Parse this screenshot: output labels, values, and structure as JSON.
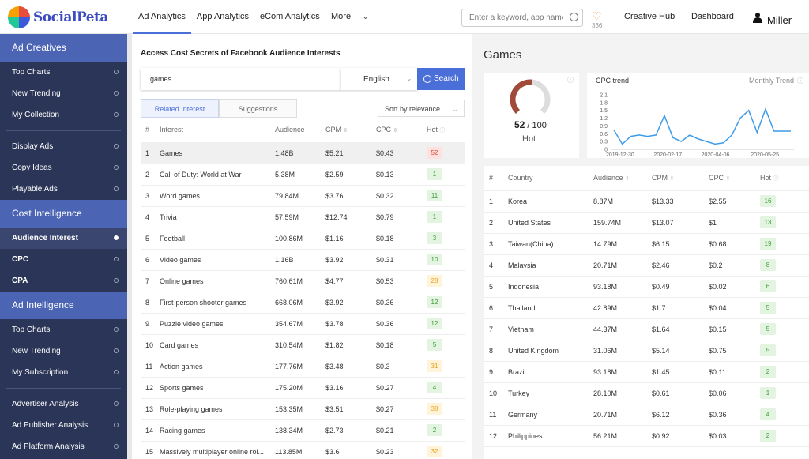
{
  "brand": {
    "name": "SocialPeta"
  },
  "topnav": {
    "tabs": [
      {
        "label": "Ad Analytics"
      },
      {
        "label": "App Analytics"
      },
      {
        "label": "eCom Analytics"
      }
    ],
    "more": "More",
    "search_placeholder": "Enter a keyword, app name",
    "favorites_count": "336",
    "creative_hub": "Creative Hub",
    "dashboard": "Dashboard",
    "user": "Miller"
  },
  "sidebar": {
    "sec1": "Ad Creatives",
    "sec1_items": [
      "Top Charts",
      "New Trending",
      "My Collection"
    ],
    "sec1b_items": [
      "Display Ads",
      "Copy Ideas",
      "Playable Ads"
    ],
    "sec2": "Cost Intelligence",
    "sec2_items": [
      "Audience Interest",
      "CPC",
      "CPA"
    ],
    "sec3": "Ad Intelligence",
    "sec3_items": [
      "Top Charts",
      "New Trending",
      "My Subscription"
    ],
    "sec3b_items": [
      "Advertiser Analysis",
      "Ad Publisher Analysis",
      "Ad Platform Analysis"
    ]
  },
  "interest_panel": {
    "title": "Access Cost Secrets of Facebook Audience Interests",
    "query": "games",
    "language": "English",
    "search_button": "Search",
    "tab_related": "Related Interest",
    "tab_suggestions": "Suggestions",
    "sort": "Sort by relevance",
    "columns": [
      "#",
      "Interest",
      "Audience",
      "CPM",
      "CPC",
      "Hot"
    ],
    "rows": [
      {
        "n": "1",
        "interest": "Games",
        "audience": "1.48B",
        "cpm": "$5.21",
        "cpc": "$0.43",
        "hot": "52",
        "level": "r"
      },
      {
        "n": "2",
        "interest": "Call of Duty: World at War",
        "audience": "5.38M",
        "cpm": "$2.59",
        "cpc": "$0.13",
        "hot": "1",
        "level": "g"
      },
      {
        "n": "3",
        "interest": "Word games",
        "audience": "79.84M",
        "cpm": "$3.76",
        "cpc": "$0.32",
        "hot": "11",
        "level": "g"
      },
      {
        "n": "4",
        "interest": "Trivia",
        "audience": "57.59M",
        "cpm": "$12.74",
        "cpc": "$0.79",
        "hot": "1",
        "level": "g"
      },
      {
        "n": "5",
        "interest": "Football",
        "audience": "100.86M",
        "cpm": "$1.16",
        "cpc": "$0.18",
        "hot": "3",
        "level": "g"
      },
      {
        "n": "6",
        "interest": "Video games",
        "audience": "1.16B",
        "cpm": "$3.92",
        "cpc": "$0.31",
        "hot": "10",
        "level": "g"
      },
      {
        "n": "7",
        "interest": "Online games",
        "audience": "760.61M",
        "cpm": "$4.77",
        "cpc": "$0.53",
        "hot": "28",
        "level": "y"
      },
      {
        "n": "8",
        "interest": "First-person shooter games",
        "audience": "668.06M",
        "cpm": "$3.92",
        "cpc": "$0.36",
        "hot": "12",
        "level": "g"
      },
      {
        "n": "9",
        "interest": "Puzzle video games",
        "audience": "354.67M",
        "cpm": "$3.78",
        "cpc": "$0.36",
        "hot": "12",
        "level": "g"
      },
      {
        "n": "10",
        "interest": "Card games",
        "audience": "310.54M",
        "cpm": "$1.82",
        "cpc": "$0.18",
        "hot": "5",
        "level": "g"
      },
      {
        "n": "11",
        "interest": "Action games",
        "audience": "177.76M",
        "cpm": "$3.48",
        "cpc": "$0.3",
        "hot": "31",
        "level": "y"
      },
      {
        "n": "12",
        "interest": "Sports games",
        "audience": "175.20M",
        "cpm": "$3.16",
        "cpc": "$0.27",
        "hot": "4",
        "level": "g"
      },
      {
        "n": "13",
        "interest": "Role-playing games",
        "audience": "153.35M",
        "cpm": "$3.51",
        "cpc": "$0.27",
        "hot": "38",
        "level": "y"
      },
      {
        "n": "14",
        "interest": "Racing games",
        "audience": "138.34M",
        "cpm": "$2.73",
        "cpc": "$0.21",
        "hot": "2",
        "level": "g"
      },
      {
        "n": "15",
        "interest": "Massively multiplayer online rol...",
        "audience": "113.85M",
        "cpm": "$3.6",
        "cpc": "$0.23",
        "hot": "32",
        "level": "y"
      }
    ]
  },
  "games_panel": {
    "title": "Games",
    "hot_score": "52",
    "hot_max": "/ 100",
    "hot_fraction": 0.52,
    "hot_label": "Hot",
    "trend_title": "CPC trend",
    "trend_mode": "Monthly Trend",
    "chart_data": {
      "type": "line",
      "y_ticks": [
        "2.1",
        "1.8",
        "1.5",
        "1.2",
        "0.9",
        "0.6",
        "0.3",
        "0"
      ],
      "ylim": [
        0,
        2.1
      ],
      "x_ticks": [
        "2019-12-30",
        "2020-02-17",
        "2020-04-06",
        "2020-05-25"
      ],
      "values": [
        0.75,
        0.2,
        0.5,
        0.55,
        0.5,
        0.55,
        1.3,
        0.45,
        0.3,
        0.55,
        0.4,
        0.3,
        0.2,
        0.25,
        0.55,
        1.2,
        1.5,
        0.65,
        1.55,
        0.7,
        0.7,
        0.7
      ]
    },
    "columns": [
      "#",
      "Country",
      "Audience",
      "CPM",
      "CPC",
      "Hot"
    ],
    "rows": [
      {
        "n": "1",
        "country": "Korea",
        "audience": "8.87M",
        "cpm": "$13.33",
        "cpc": "$2.55",
        "hot": "16"
      },
      {
        "n": "2",
        "country": "United States",
        "audience": "159.74M",
        "cpm": "$13.07",
        "cpc": "$1",
        "hot": "13"
      },
      {
        "n": "3",
        "country": "Taiwan(China)",
        "audience": "14.79M",
        "cpm": "$6.15",
        "cpc": "$0.68",
        "hot": "19"
      },
      {
        "n": "4",
        "country": "Malaysia",
        "audience": "20.71M",
        "cpm": "$2.46",
        "cpc": "$0.2",
        "hot": "8"
      },
      {
        "n": "5",
        "country": "Indonesia",
        "audience": "93.18M",
        "cpm": "$0.49",
        "cpc": "$0.02",
        "hot": "6"
      },
      {
        "n": "6",
        "country": "Thailand",
        "audience": "42.89M",
        "cpm": "$1.7",
        "cpc": "$0.04",
        "hot": "5"
      },
      {
        "n": "7",
        "country": "Vietnam",
        "audience": "44.37M",
        "cpm": "$1.64",
        "cpc": "$0.15",
        "hot": "5"
      },
      {
        "n": "8",
        "country": "United Kingdom",
        "audience": "31.06M",
        "cpm": "$5.14",
        "cpc": "$0.75",
        "hot": "5"
      },
      {
        "n": "9",
        "country": "Brazil",
        "audience": "93.18M",
        "cpm": "$1.45",
        "cpc": "$0.11",
        "hot": "2"
      },
      {
        "n": "10",
        "country": "Turkey",
        "audience": "28.10M",
        "cpm": "$0.61",
        "cpc": "$0.06",
        "hot": "1"
      },
      {
        "n": "11",
        "country": "Germany",
        "audience": "20.71M",
        "cpm": "$6.12",
        "cpc": "$0.36",
        "hot": "4"
      },
      {
        "n": "12",
        "country": "Philippines",
        "audience": "56.21M",
        "cpm": "$0.92",
        "cpc": "$0.03",
        "hot": "2"
      }
    ]
  }
}
